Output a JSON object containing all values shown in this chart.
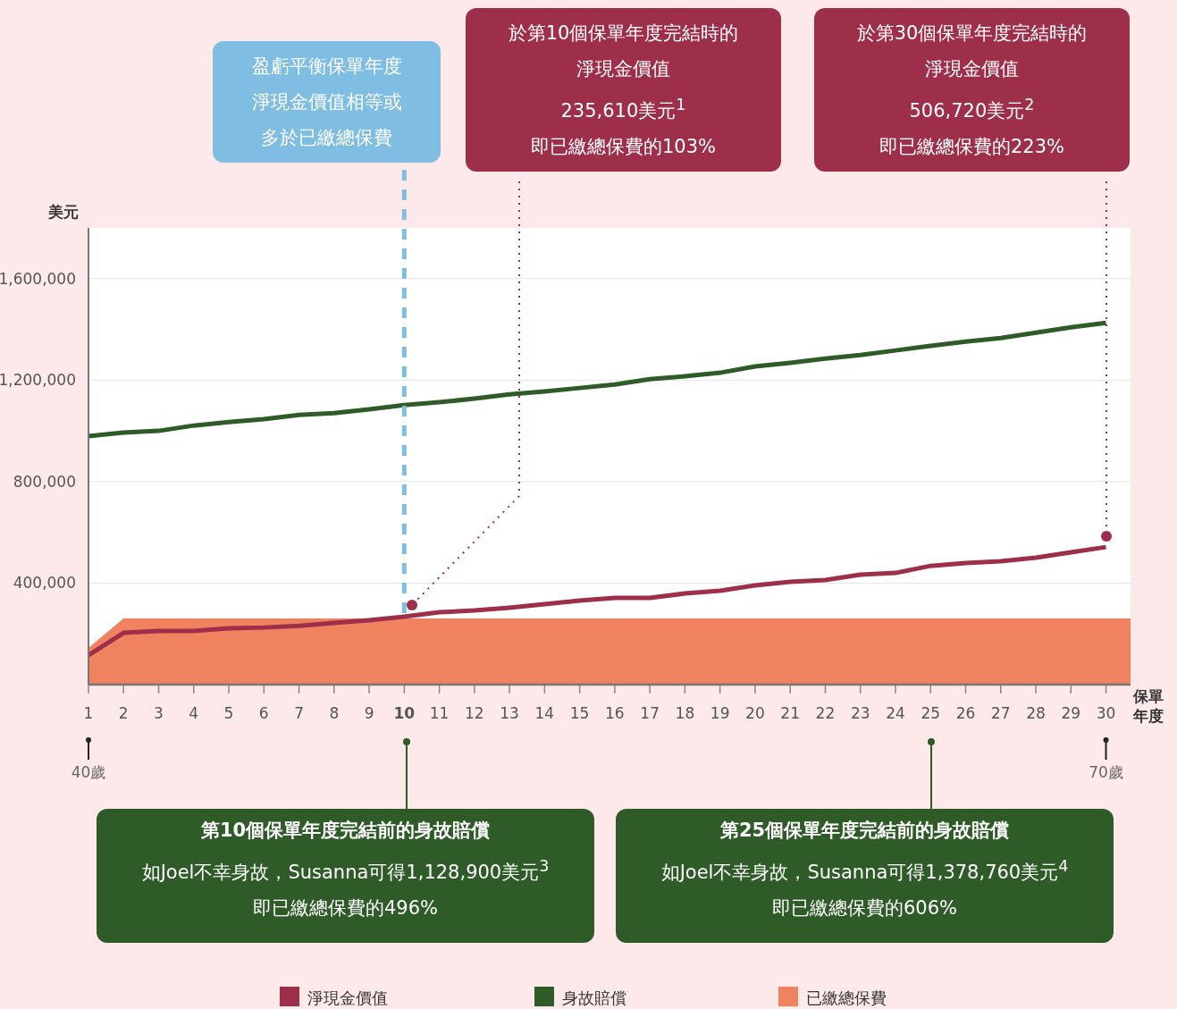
{
  "chart_data": {
    "type": "line",
    "xlabel": "保單年度",
    "ylabel": "美元",
    "x": [
      1,
      2,
      3,
      4,
      5,
      6,
      7,
      8,
      9,
      10,
      11,
      12,
      13,
      14,
      15,
      16,
      17,
      18,
      19,
      20,
      21,
      22,
      23,
      24,
      25,
      26,
      27,
      28,
      29,
      30
    ],
    "xlim": [
      1,
      30.7
    ],
    "ylim": [
      0,
      1800000
    ],
    "xticks": [
      1,
      2,
      3,
      4,
      5,
      6,
      7,
      8,
      9,
      {
        "value": 10,
        "label": "**10**"
      },
      11,
      12,
      13,
      14,
      15,
      16,
      17,
      18,
      19,
      20,
      21,
      22,
      23,
      24,
      25,
      26,
      27,
      28,
      29,
      30
    ],
    "yticks": [
      {
        "value": 400000,
        "label": "400,000"
      },
      {
        "value": 800000,
        "label": "800,000"
      },
      {
        "value": 1200000,
        "label": "1,200,000"
      },
      {
        "value": 1600000,
        "label": "1,600,000"
      }
    ],
    "grid": "y",
    "legend": "bottom",
    "line_style": "solid",
    "marker": "none",
    "series": [
      {
        "name": "淨現金價值",
        "color": "#9e2f4a",
        "values": [
          116000,
          204000,
          211000,
          211000,
          222000,
          225000,
          232000,
          243000,
          254000,
          268000,
          285000,
          292000,
          303000,
          317000,
          331000,
          342000,
          342000,
          359000,
          370000,
          391000,
          405000,
          412000,
          433000,
          440000,
          468000,
          479000,
          486000,
          500000,
          521000,
          542000
        ]
      },
      {
        "name": "身故賠償",
        "color": "#2e5b27",
        "values": [
          979000,
          993000,
          1000000,
          1021000,
          1035000,
          1046000,
          1063000,
          1070000,
          1085000,
          1102000,
          1113000,
          1127000,
          1144000,
          1155000,
          1169000,
          1183000,
          1204000,
          1215000,
          1229000,
          1254000,
          1268000,
          1285000,
          1299000,
          1317000,
          1335000,
          1352000,
          1366000,
          1387000,
          1408000,
          1426000
        ]
      },
      {
        "name": "已繳總保費",
        "type": "area",
        "color": "#f0825f",
        "x": [
          1,
          2,
          30.7
        ],
        "values": [
          144000,
          261000,
          261000
        ]
      }
    ],
    "ref_lines": [
      {
        "axis": "x",
        "value": 10,
        "label": "盈虧平衡保單年度淨現金價值相等或多於已繳總保費",
        "color": "#7fbde2",
        "line_style": "dashed"
      }
    ],
    "annotations": [
      "於第10個保單年度完結時的",
      "淨現金價值",
      "235,610美元$^{1}$",
      "即已繳總保費的103%",
      "於第30個保單年度完結時的",
      "淨現金價值",
      "506,720美元$^{2}$",
      "即已繳總保費的223%",
      "第10個保單年度完結前的身故賠償",
      "如Joel不幸身故，Susanna可得1,128,900美元$^{3}$",
      "即已繳總保費的496%",
      "第25個保單年度完結前的身故賠償",
      "如Joel不幸身故，Susanna可得1,378,760美元$^{4}$",
      "即已繳總保費的606%",
      {
        "text": "40歲",
        "x": 1
      },
      {
        "text": "70歲",
        "x": 30
      }
    ]
  }
}
